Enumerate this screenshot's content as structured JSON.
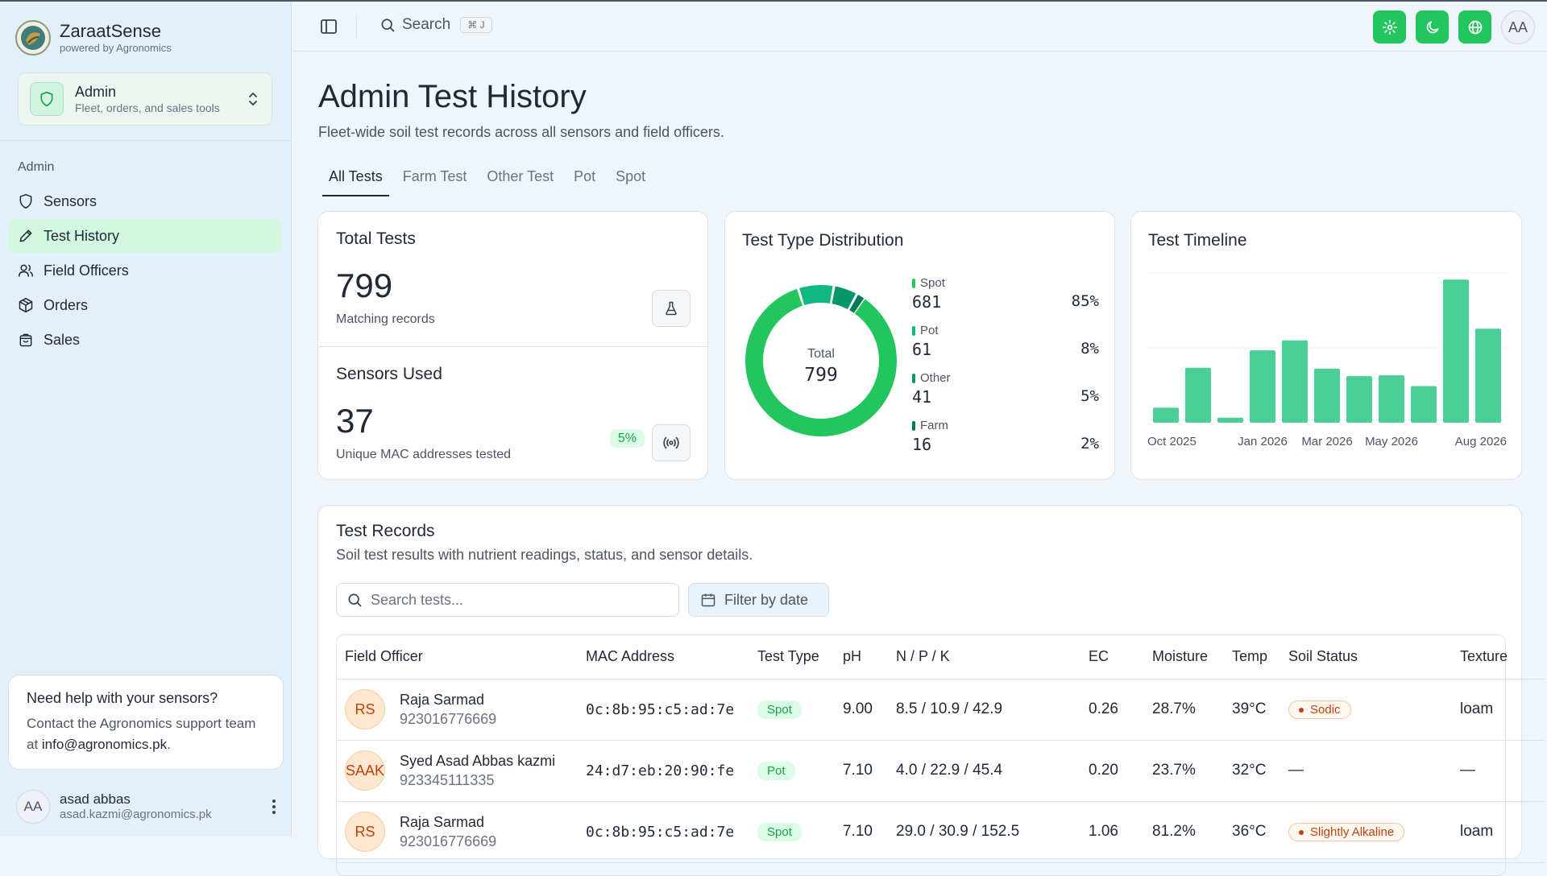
{
  "brand": {
    "name": "ZaraatSense",
    "sub": "powered by Agronomics"
  },
  "workspace": {
    "title": "Admin",
    "subtitle": "Fleet, orders, and sales tools"
  },
  "sidebar": {
    "group_label": "Admin",
    "items": [
      {
        "label": "Sensors",
        "icon": "shield-icon",
        "active": false
      },
      {
        "label": "Test History",
        "icon": "pencil-icon",
        "active": true
      },
      {
        "label": "Field Officers",
        "icon": "users-icon",
        "active": false
      },
      {
        "label": "Orders",
        "icon": "package-icon",
        "active": false
      },
      {
        "label": "Sales",
        "icon": "shopping-bag-icon",
        "active": false
      }
    ],
    "help": {
      "title": "Need help with your sensors?",
      "body": "Contact the Agronomics support team at ",
      "email": "info@agronomics.pk",
      "end": "."
    },
    "user": {
      "initials": "AA",
      "name": "asad abbas",
      "email": "asad.kazmi@agronomics.pk"
    }
  },
  "header": {
    "search_label": "Search",
    "search_kbd": "⌘ J",
    "avatar": "AA",
    "accent": "#22c55e"
  },
  "page": {
    "title": "Admin Test History",
    "subtitle": "Fleet-wide soil test records across all sensors and field officers.",
    "tabs": [
      "All Tests",
      "Farm Test",
      "Other Test",
      "Pot",
      "Spot"
    ],
    "active_tab": "All Tests"
  },
  "stats": {
    "total": {
      "title": "Total Tests",
      "value": "799",
      "label": "Matching records"
    },
    "sensors": {
      "title": "Sensors Used",
      "value": "37",
      "label": "Unique MAC addresses tested",
      "badge": "5%"
    }
  },
  "distribution": {
    "title": "Test Type Distribution",
    "total_label": "Total",
    "total_value": "799",
    "items": [
      {
        "name": "Spot",
        "count": "681",
        "pct": "85%",
        "color": "#22c55e"
      },
      {
        "name": "Pot",
        "count": "61",
        "pct": "8%",
        "color": "#10b981"
      },
      {
        "name": "Other",
        "count": "41",
        "pct": "5%",
        "color": "#059669"
      },
      {
        "name": "Farm",
        "count": "16",
        "pct": "2%",
        "color": "#047857"
      }
    ]
  },
  "timeline": {
    "title": "Test Timeline",
    "x_labels": [
      "Oct 2025",
      "Jan 2026",
      "Mar 2026",
      "May 2026",
      "Aug 2026"
    ]
  },
  "chart_data": {
    "type": "bar",
    "title": "Test Timeline",
    "categories": [
      "Oct 2025",
      "Nov 2025",
      "Dec 2025",
      "Jan 2026",
      "Feb 2026",
      "Mar 2026",
      "Apr 2026",
      "May 2026",
      "Jun 2026",
      "Jul 2026",
      "Aug 2026"
    ],
    "values": [
      18,
      66,
      6,
      87,
      99,
      65,
      56,
      57,
      44,
      172,
      113
    ],
    "ylim": [
      0,
      180
    ],
    "grid": true,
    "color": "#4ccf97"
  },
  "records": {
    "title": "Test Records",
    "subtitle": "Soil test results with nutrient readings, status, and sensor details.",
    "search_placeholder": "Search tests...",
    "date_filter": "Filter by date",
    "columns": [
      "Field Officer",
      "MAC Address",
      "Test Type",
      "pH",
      "N / P / K",
      "EC",
      "Moisture",
      "Temp",
      "Soil Status",
      "Texture"
    ],
    "rows": [
      {
        "initials": "RS",
        "name": "Raja Sarmad",
        "phone": "923016776669",
        "mac": "0c:8b:95:c5:ad:7e",
        "type": "Spot",
        "ph": "9.00",
        "npk": "8.5 / 10.9 / 42.9",
        "ec": "0.26",
        "moisture": "28.7%",
        "temp": "39°C",
        "status": "Sodic",
        "texture": "loam"
      },
      {
        "initials": "SAAK",
        "name": "Syed Asad Abbas kazmi",
        "phone": "923345111335",
        "mac": "24:d7:eb:20:90:fe",
        "type": "Pot",
        "ph": "7.10",
        "npk": "4.0 / 22.9 / 45.4",
        "ec": "0.20",
        "moisture": "23.7%",
        "temp": "32°C",
        "status": "—",
        "texture": "—"
      },
      {
        "initials": "RS",
        "name": "Raja Sarmad",
        "phone": "923016776669",
        "mac": "0c:8b:95:c5:ad:7e",
        "type": "Spot",
        "ph": "7.10",
        "npk": "29.0 / 30.9 / 152.5",
        "ec": "1.06",
        "moisture": "81.2%",
        "temp": "36°C",
        "status": "Slightly Alkaline",
        "texture": "loam"
      }
    ]
  }
}
